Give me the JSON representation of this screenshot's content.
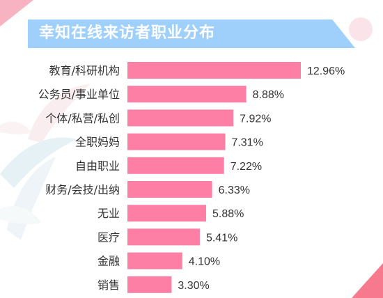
{
  "title": "幸知在线来访者职业分布",
  "colors": {
    "bar": "#fe7fa6",
    "banner": "#9fd0fb",
    "accent_pink": "#f6798d"
  },
  "chart_data": {
    "type": "bar",
    "orientation": "horizontal",
    "title": "幸知在线来访者职业分布",
    "categories": [
      "教育/科研机构",
      "公务员/事业单位",
      "个体/私营/私创",
      "全职妈妈",
      "自由职业",
      "财务/会技/出纳",
      "无业",
      "医疗",
      "金融",
      "销售"
    ],
    "values": [
      12.96,
      8.88,
      7.92,
      7.31,
      7.22,
      6.33,
      5.88,
      5.41,
      4.1,
      3.3
    ],
    "labels": [
      "12.96%",
      "8.88%",
      "7.92%",
      "7.31%",
      "7.22%",
      "6.33%",
      "5.88%",
      "5.41%",
      "4.10%",
      "3.30%"
    ],
    "xlim": [
      0,
      13.5
    ],
    "grid": false,
    "legend": "none"
  }
}
